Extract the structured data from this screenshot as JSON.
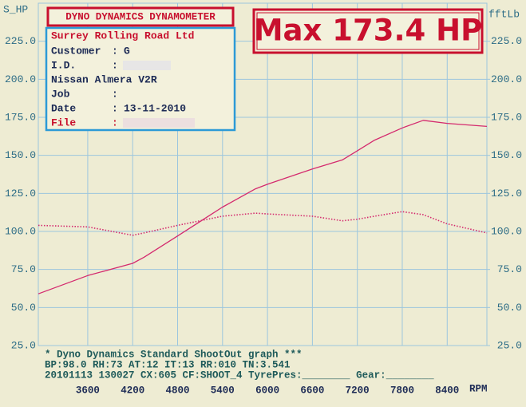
{
  "chart_data": {
    "type": "line",
    "y_label": "S_HP",
    "y2_label": "fftLb",
    "x_label": "RPM",
    "x": [
      2940,
      3600,
      4200,
      4350,
      4800,
      5400,
      5840,
      6000,
      6600,
      7000,
      7200,
      7430,
      7800,
      8080,
      8400,
      8930
    ],
    "series": [
      {
        "name": "S_HP",
        "color": "#d42a6e",
        "style": "solid",
        "values": [
          59,
          71,
          79,
          83,
          97,
          116,
          128,
          131,
          141,
          147,
          153,
          160,
          168,
          173,
          171,
          169
        ]
      },
      {
        "name": "fftLb",
        "color": "#d42a6e",
        "style": "dotted",
        "axis": "y2",
        "values": [
          104,
          103,
          97.5,
          99,
          104,
          110,
          112,
          111.5,
          110,
          107,
          108,
          110,
          113,
          111,
          105,
          99
        ]
      }
    ],
    "xlim": [
      2940,
      8930
    ],
    "xticks": [
      3600,
      4200,
      4800,
      5400,
      6000,
      6600,
      7200,
      7800,
      8400
    ],
    "ylim": [
      25,
      250
    ],
    "yticks": [
      {
        "value": 25,
        "label": "25.0"
      },
      {
        "value": 50,
        "label": "50.0"
      },
      {
        "value": 75,
        "label": "75.0"
      },
      {
        "value": 100,
        "label": "100.0"
      },
      {
        "value": 125,
        "label": "125.0"
      },
      {
        "value": 150,
        "label": "150.0"
      },
      {
        "value": 175,
        "label": "175.0"
      },
      {
        "value": 200,
        "label": "200.0"
      },
      {
        "value": 225,
        "label": "225.0"
      }
    ],
    "y2lim": [
      25,
      250
    ],
    "y2ticks": [
      {
        "value": 25,
        "label": "25.0"
      },
      {
        "value": 50,
        "label": "50.0"
      },
      {
        "value": 75,
        "label": "75.0"
      },
      {
        "value": 100,
        "label": "100.0"
      },
      {
        "value": 125,
        "label": "125.0"
      },
      {
        "value": 150,
        "label": "150.0"
      },
      {
        "value": 175,
        "label": "175.0"
      },
      {
        "value": 200,
        "label": "200.0"
      },
      {
        "value": 225,
        "label": "225.0"
      }
    ],
    "grid": true
  },
  "header": "DYNO DYNAMICS DYNAMOMETER",
  "max_label": "Max 173.4 HP",
  "info": {
    "company": "Surrey Rolling Road Ltd",
    "separator": ":",
    "customer_label": "Customer",
    "customer": "G",
    "id_label": "I.D.",
    "vehicle": "Nissan Almera V2R",
    "job_label": "Job",
    "date_label": "Date",
    "date": "13-11-2010",
    "file_label": "File"
  },
  "footer": [
    "* Dyno Dynamics Standard ShootOut graph ***",
    "BP:98.0  RH:73  AT:12  IT:13  RR:010  TN:3.541",
    "20101113 130027 CX:605 CF:SHOOT_4  TyrePres:________ Gear:________"
  ]
}
